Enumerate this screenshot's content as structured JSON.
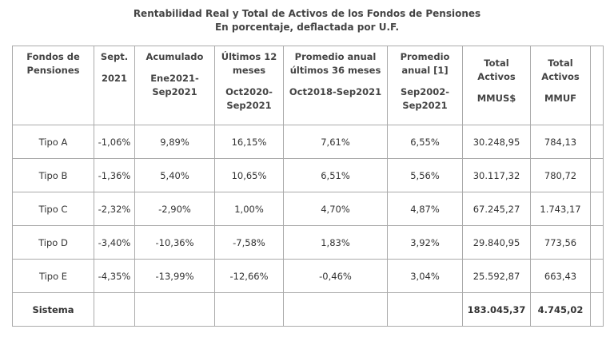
{
  "title": {
    "line1": "Rentabilidad Real y Total de Activos de los Fondos de Pensiones",
    "line2": "En porcentaje, deflactada por U.F."
  },
  "table": {
    "header": [
      [
        [
          "Fondos de",
          "Pensiones"
        ]
      ],
      [
        [
          "Sept."
        ],
        [
          "2021"
        ]
      ],
      [
        [
          "Acumulado"
        ],
        [
          "Ene2021-",
          "Sep2021"
        ]
      ],
      [
        [
          "Últimos 12",
          "meses"
        ],
        [
          "Oct2020-",
          "Sep2021"
        ]
      ],
      [
        [
          "Promedio anual",
          "últimos 36 meses"
        ],
        [
          "Oct2018-Sep2021"
        ]
      ],
      [
        [
          "Promedio",
          "anual [1]"
        ],
        [
          "Sep2002-",
          "Sep2021"
        ]
      ],
      [
        [
          "Total",
          "Activos"
        ],
        [
          "MMUS$"
        ]
      ],
      [
        [
          "Total",
          "Activos"
        ],
        [
          "MMUF"
        ]
      ]
    ],
    "rows": [
      [
        "Tipo A",
        "-1,06%",
        "9,89%",
        "16,15%",
        "7,61%",
        "6,55%",
        "30.248,95",
        "784,13"
      ],
      [
        "Tipo B",
        "-1,36%",
        "5,40%",
        "10,65%",
        "6,51%",
        "5,56%",
        "30.117,32",
        "780,72"
      ],
      [
        "Tipo C",
        "-2,32%",
        "-2,90%",
        "1,00%",
        "4,70%",
        "4,87%",
        "67.245,27",
        "1.743,17"
      ],
      [
        "Tipo D",
        "-3,40%",
        "-10,36%",
        "-7,58%",
        "1,83%",
        "3,92%",
        "29.840,95",
        "773,56"
      ],
      [
        "Tipo E",
        "-4,35%",
        "-13,99%",
        "-12,66%",
        "-0,46%",
        "3,04%",
        "25.592,87",
        "663,43"
      ]
    ],
    "total": {
      "label": "Sistema",
      "mmus": "183.045,37",
      "mmuf": "4.745,02"
    }
  }
}
